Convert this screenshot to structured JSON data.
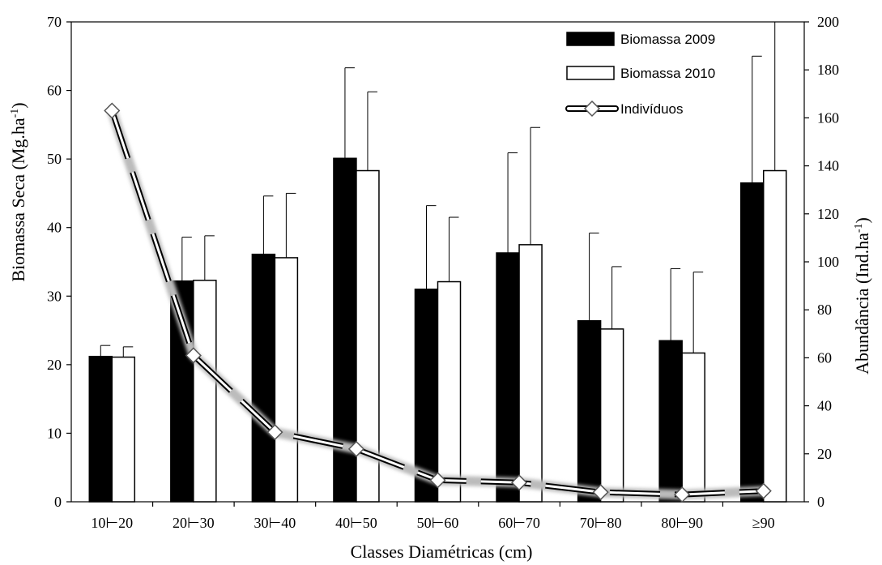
{
  "chart_data": {
    "type": "bar",
    "title": "",
    "xlabel": "Classes Diamétricas (cm)",
    "ylabel": "Biomassa Seca (Mg.ha",
    "ylabel_sup": "-1",
    "ylabel_end": ")",
    "y2label": "Abundância (Ind.ha",
    "y2label_sup": "-1",
    "y2label_end": ")",
    "categories": [
      "10⊢20",
      "20⊢30",
      "30⊢40",
      "40⊢50",
      "50⊢60",
      "60⊢70",
      "70⊢80",
      "80⊢90",
      "≥90"
    ],
    "ylim": [
      0,
      70
    ],
    "yticks": [
      0,
      10,
      20,
      30,
      40,
      50,
      60,
      70
    ],
    "y2lim": [
      0,
      200
    ],
    "y2ticks": [
      0,
      20,
      40,
      60,
      80,
      100,
      120,
      140,
      160,
      180,
      200
    ],
    "grid": false,
    "legend_position": "top-right",
    "series": [
      {
        "name": "Biomassa 2009",
        "kind": "bar",
        "axis": "left",
        "color": "#000000",
        "values": [
          21.2,
          32.2,
          36.1,
          50.1,
          31.0,
          36.3,
          26.4,
          23.5,
          46.5
        ],
        "error_upper": [
          22.8,
          38.6,
          44.6,
          63.3,
          43.2,
          50.9,
          39.2,
          34.0,
          65.0
        ]
      },
      {
        "name": "Biomassa 2010",
        "kind": "bar",
        "axis": "left",
        "color": "#ffffff",
        "values": [
          21.1,
          32.3,
          35.6,
          48.3,
          32.1,
          37.5,
          25.2,
          21.7,
          48.3
        ],
        "error_upper": [
          22.6,
          38.8,
          45.0,
          59.8,
          41.5,
          54.6,
          34.3,
          33.5,
          70.0
        ]
      },
      {
        "name": "Indivíduos",
        "kind": "line",
        "axis": "right",
        "color": "#ffffff",
        "values": [
          163,
          61,
          29,
          22,
          9,
          8,
          4,
          3,
          4.5
        ]
      }
    ]
  }
}
